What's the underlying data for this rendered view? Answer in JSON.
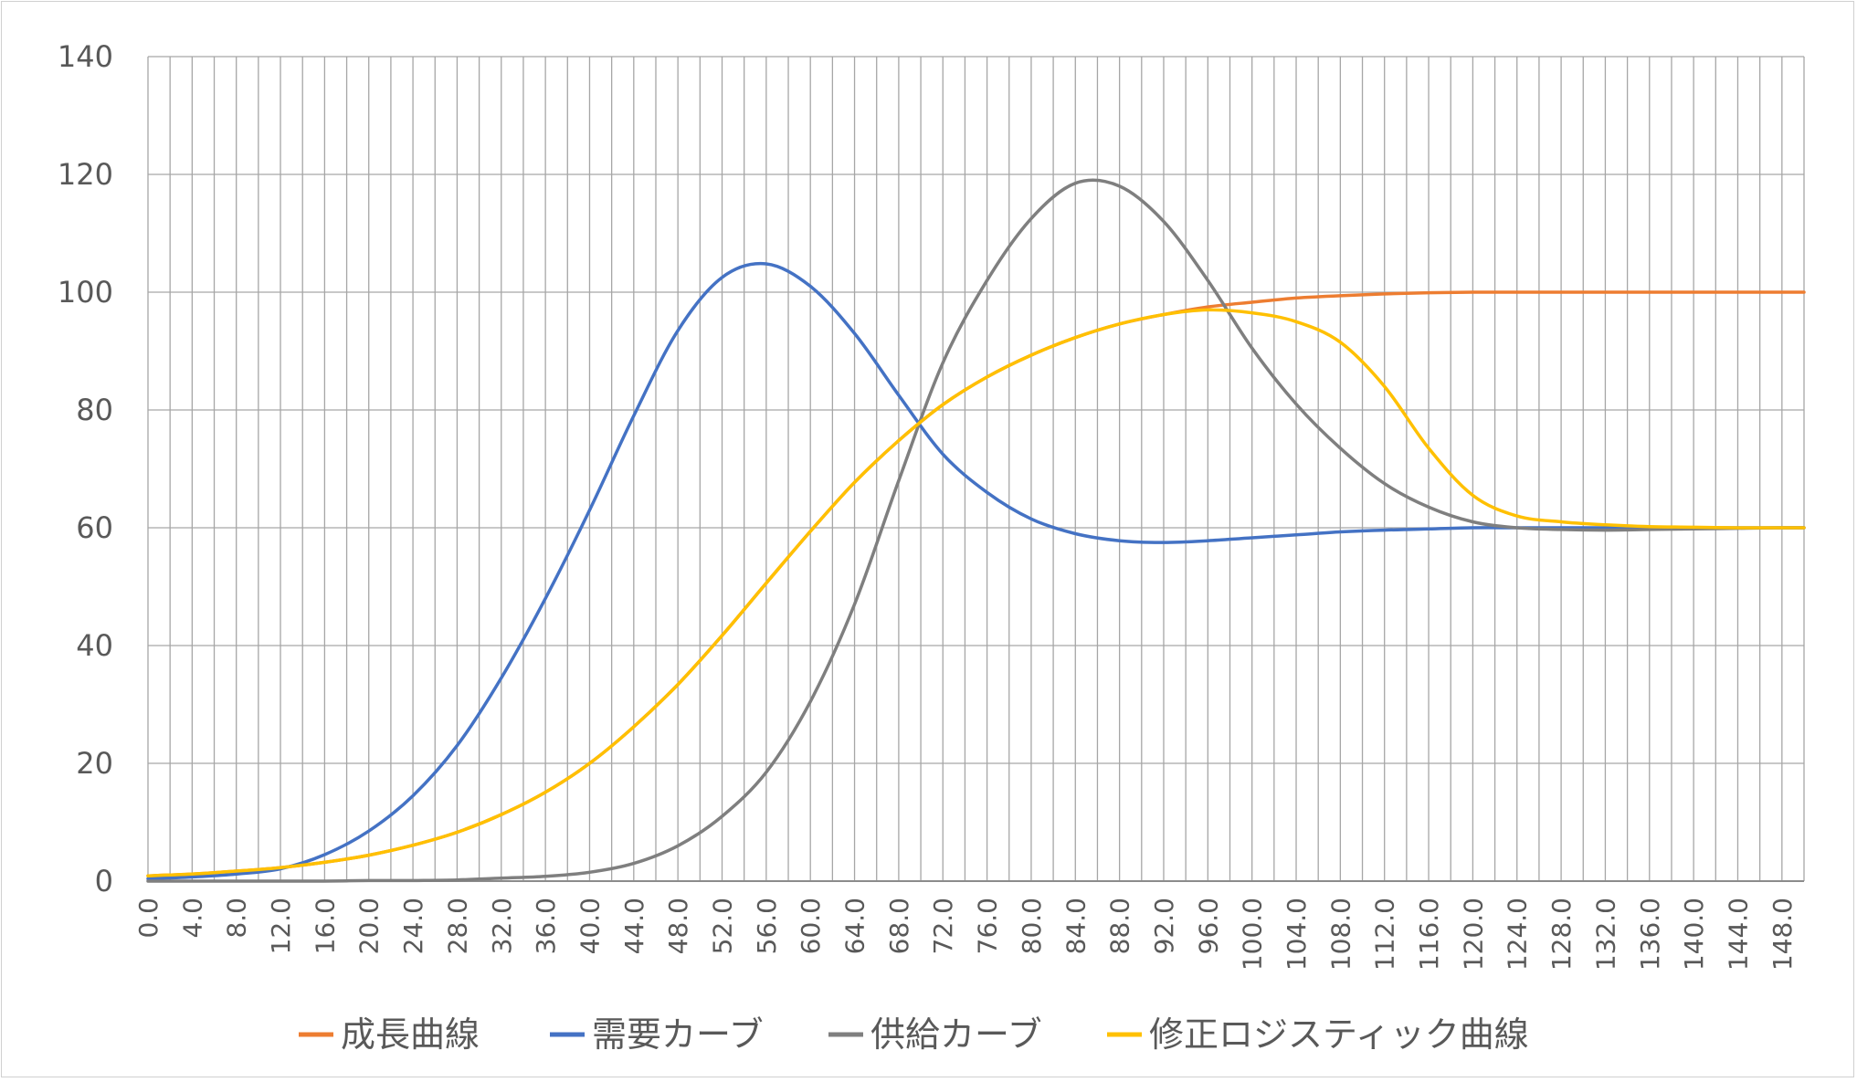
{
  "chart_data": {
    "type": "line",
    "xlabel": "",
    "ylabel": "",
    "x": [
      0,
      4,
      8,
      12,
      16,
      20,
      24,
      28,
      32,
      36,
      40,
      44,
      48,
      52,
      56,
      60,
      64,
      68,
      72,
      76,
      80,
      84,
      88,
      92,
      96,
      100,
      104,
      108,
      112,
      116,
      120,
      124,
      128,
      132,
      136,
      140,
      144,
      148,
      150
    ],
    "x_tick_labels": [
      "0.0",
      "4.0",
      "8.0",
      "12.0",
      "16.0",
      "20.0",
      "24.0",
      "28.0",
      "32.0",
      "36.0",
      "40.0",
      "44.0",
      "48.0",
      "52.0",
      "56.0",
      "60.0",
      "64.0",
      "68.0",
      "72.0",
      "76.0",
      "80.0",
      "84.0",
      "88.0",
      "92.0",
      "96.0",
      "100.0",
      "104.0",
      "108.0",
      "112.0",
      "116.0",
      "120.0",
      "124.0",
      "128.0",
      "132.0",
      "136.0",
      "140.0",
      "144.0",
      "148.0"
    ],
    "xlim": [
      0,
      150
    ],
    "x_grid_step": 2,
    "ylim": [
      0,
      140
    ],
    "y_ticks": [
      "0",
      "20",
      "40",
      "60",
      "80",
      "100",
      "120",
      "140"
    ],
    "grid": true,
    "legend_position": "bottom",
    "series": [
      {
        "name": "成長曲線",
        "color": "#ED7D31",
        "values": [
          0.9,
          1.2,
          1.7,
          2.3,
          3.2,
          4.4,
          6.1,
          8.3,
          11.3,
          15.1,
          20.0,
          26.2,
          33.4,
          41.7,
          50.6,
          59.4,
          67.7,
          74.8,
          80.9,
          85.6,
          89.3,
          92.3,
          94.6,
          96.2,
          97.5,
          98.3,
          99.0,
          99.4,
          99.7,
          99.9,
          100,
          100,
          100,
          100,
          100,
          100,
          100,
          100,
          100
        ]
      },
      {
        "name": "需要カーブ",
        "color": "#4472C4",
        "values": [
          0.4,
          0.7,
          1.2,
          2.1,
          4.5,
          8.5,
          14.5,
          23.0,
          34.5,
          48.0,
          63.0,
          79.0,
          93.5,
          102.5,
          104.8,
          101.0,
          93.0,
          82.5,
          72.5,
          66.0,
          61.5,
          59.0,
          57.8,
          57.5,
          57.8,
          58.3,
          58.8,
          59.3,
          59.6,
          59.8,
          60,
          60,
          60,
          60,
          60,
          60,
          60,
          60,
          60
        ]
      },
      {
        "name": "供給カーブ",
        "color": "#7F7F7F",
        "values": [
          0.0,
          0.0,
          0.0,
          0.0,
          0.0,
          0.1,
          0.1,
          0.2,
          0.5,
          0.8,
          1.5,
          3.0,
          6.0,
          11.0,
          18.5,
          30.5,
          47.0,
          68.0,
          88.0,
          102.0,
          112.5,
          118.5,
          118.0,
          112.0,
          102.0,
          90.5,
          81.0,
          73.5,
          67.5,
          63.5,
          61.0,
          60.0,
          59.7,
          59.6,
          59.7,
          59.8,
          59.9,
          60.0,
          60.0
        ]
      },
      {
        "name": "修正ロジスティック曲線",
        "color": "#FFC000",
        "values": [
          0.9,
          1.2,
          1.7,
          2.3,
          3.2,
          4.4,
          6.1,
          8.3,
          11.3,
          15.1,
          20.0,
          26.2,
          33.4,
          41.7,
          50.6,
          59.4,
          67.7,
          74.8,
          80.9,
          85.6,
          89.3,
          92.3,
          94.6,
          96.2,
          97.0,
          96.5,
          95.0,
          91.5,
          84.0,
          73.5,
          65.5,
          62.0,
          61.0,
          60.5,
          60.2,
          60.1,
          60.0,
          60.0,
          60.0
        ]
      }
    ]
  }
}
